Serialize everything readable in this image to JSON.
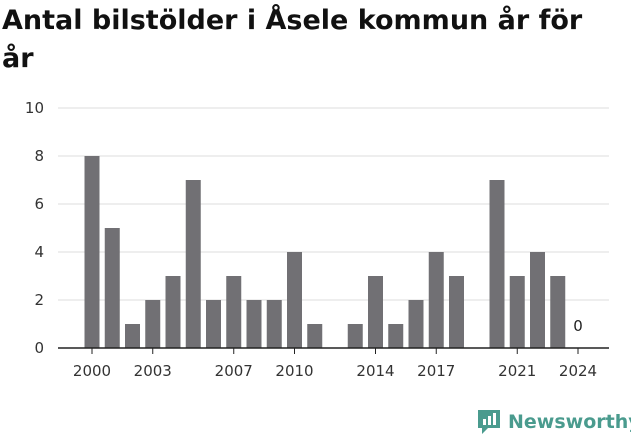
{
  "title": "Antal bilstölder i Åsele kommun år för år",
  "brand": {
    "name": "Newsworthy",
    "icon": "newsworthy-logo-icon",
    "color": "#4a9b8e"
  },
  "chart_data": {
    "type": "bar",
    "title": "Antal bilstölder i Åsele kommun år för år",
    "xlabel": "",
    "ylabel": "",
    "ylim": [
      0,
      10
    ],
    "yticks": [
      0,
      2,
      4,
      6,
      8,
      10
    ],
    "grid": true,
    "bar_color": "#717074",
    "categories": [
      "2000",
      "2001",
      "2002",
      "2003",
      "2004",
      "2005",
      "2006",
      "2007",
      "2008",
      "2009",
      "2010",
      "2011",
      "2012",
      "2013",
      "2014",
      "2015",
      "2016",
      "2017",
      "2018",
      "2019",
      "2020",
      "2021",
      "2022",
      "2023",
      "2024"
    ],
    "values": [
      8,
      5,
      1,
      2,
      3,
      7,
      2,
      3,
      2,
      2,
      4,
      1,
      null,
      1,
      3,
      1,
      2,
      4,
      3,
      null,
      7,
      3,
      4,
      3,
      0
    ],
    "xtick_labels": [
      "2000",
      "2003",
      "2007",
      "2010",
      "2014",
      "2017",
      "2021",
      "2024"
    ],
    "annotations": [
      {
        "category": "2024",
        "text": "0"
      }
    ]
  }
}
